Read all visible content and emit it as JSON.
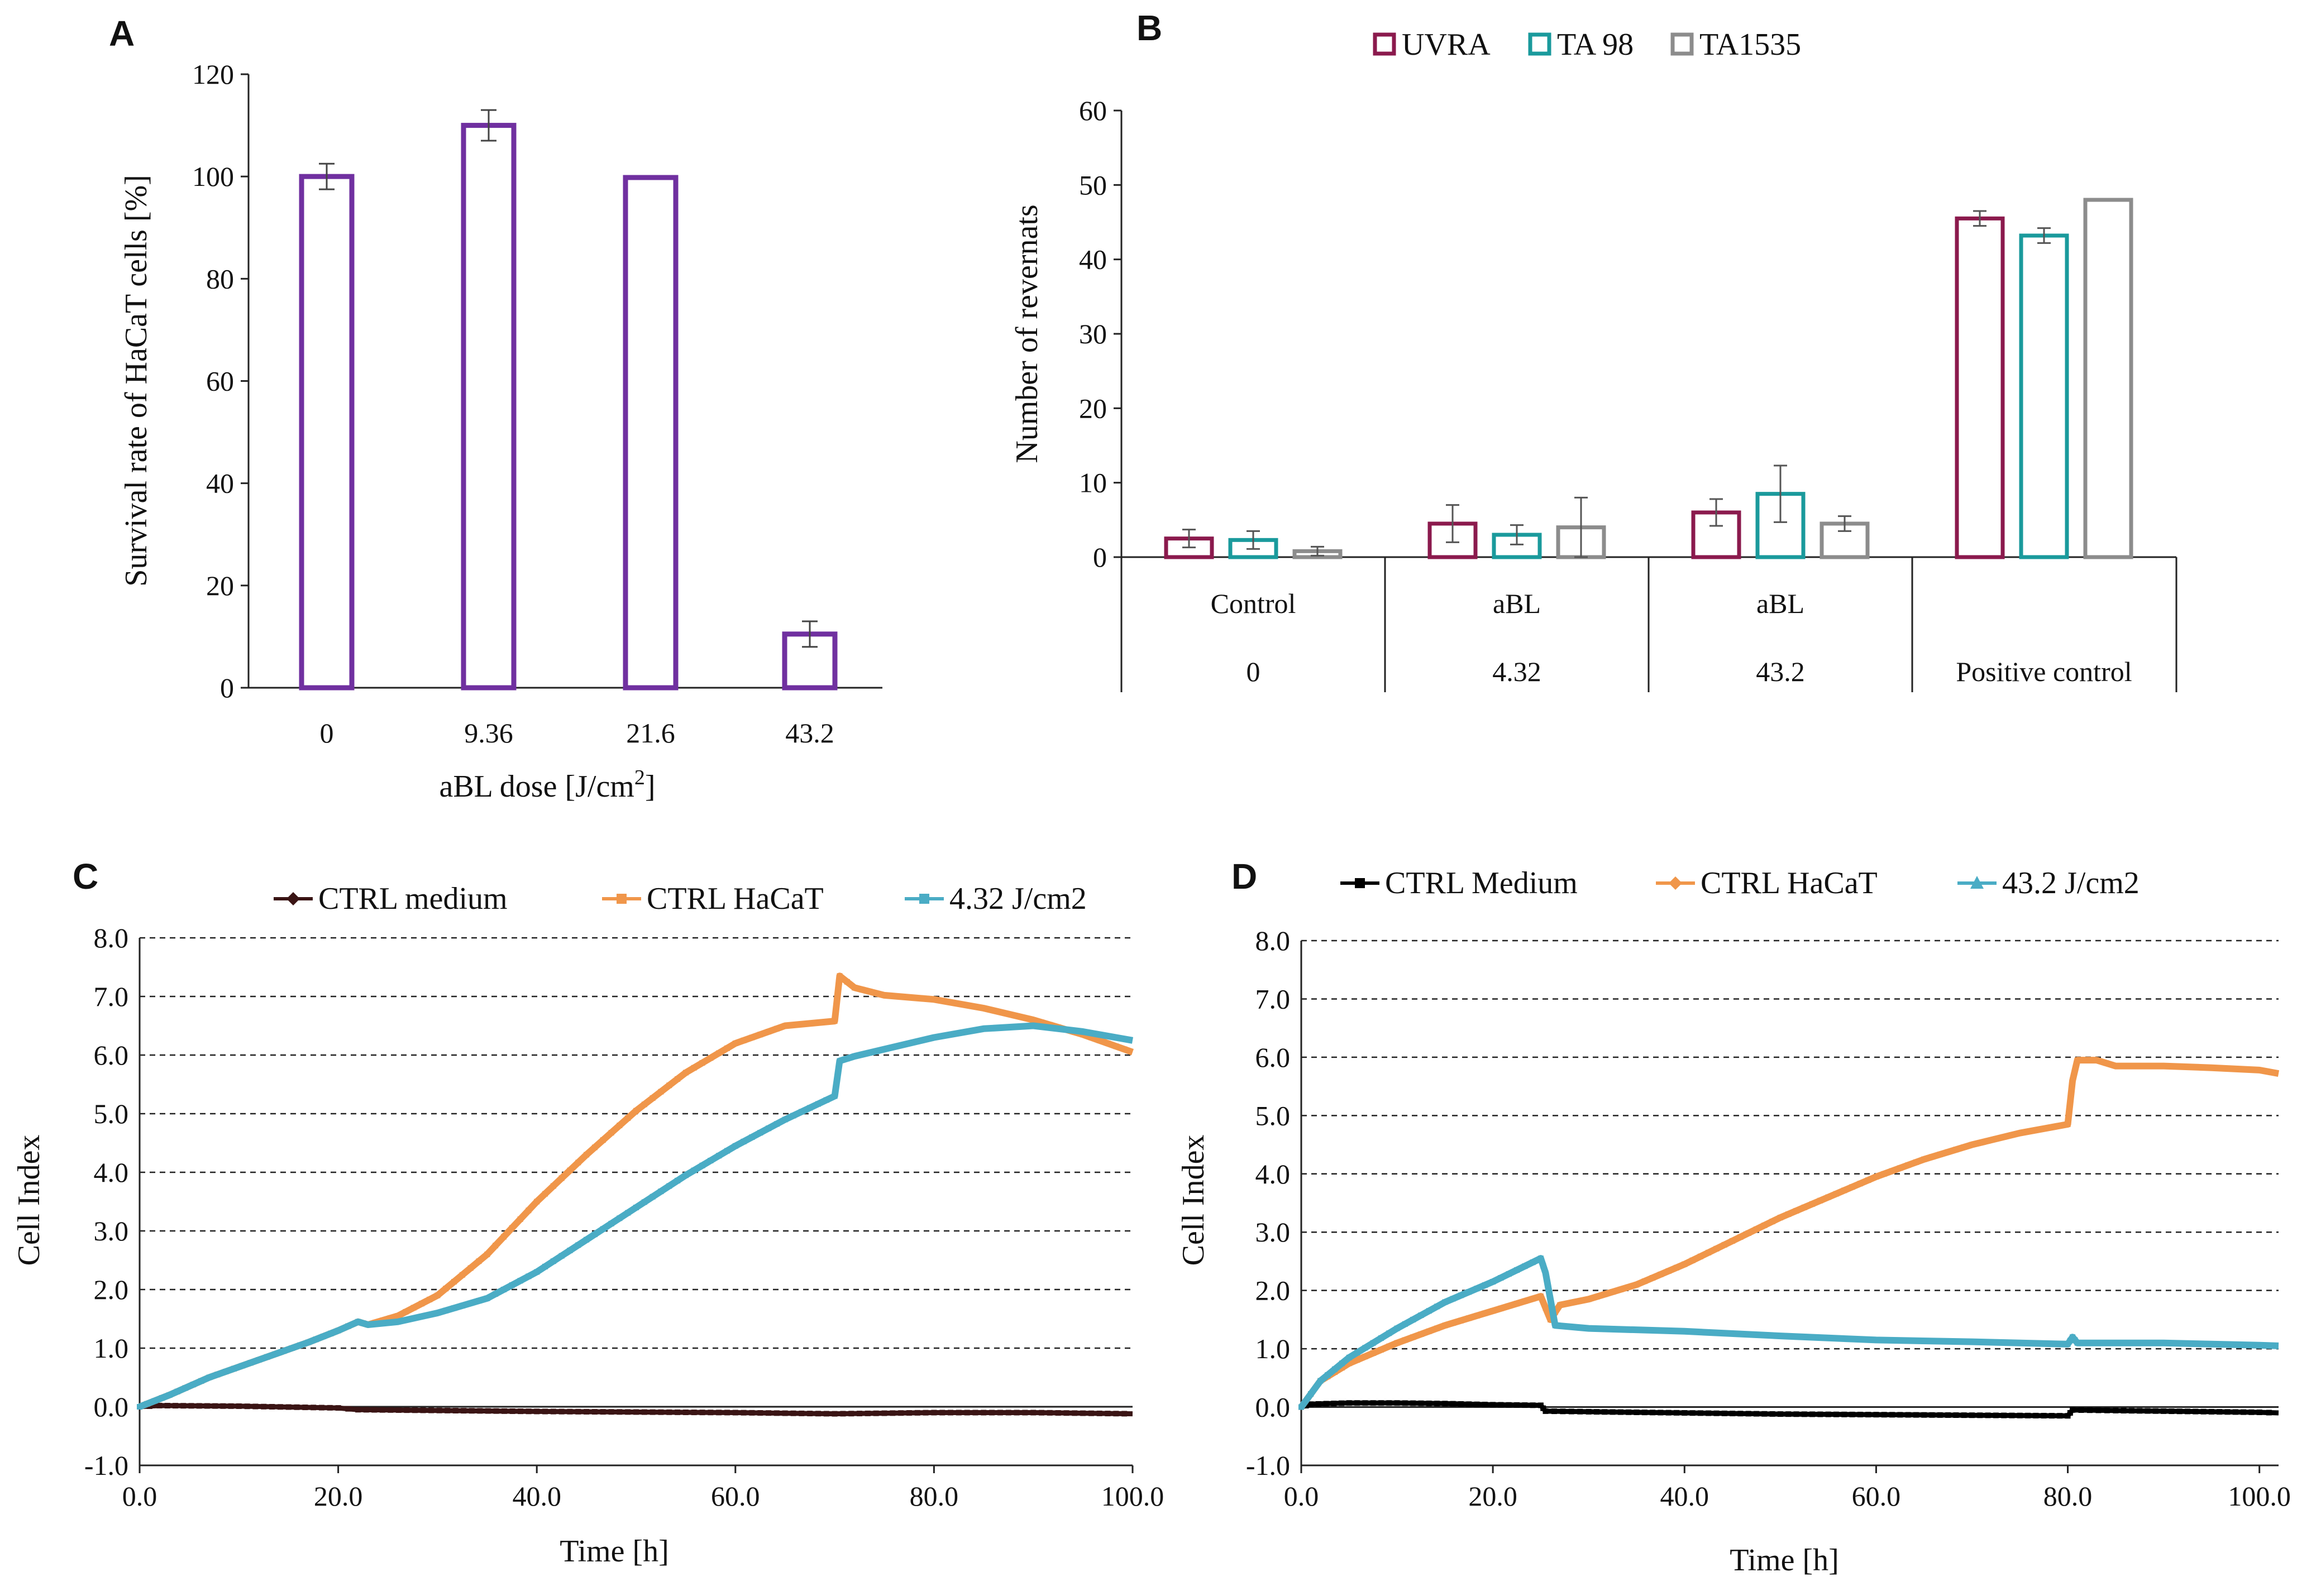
{
  "colors": {
    "purple": "#7030A0",
    "uvra": "#8B1A4D",
    "ta98": "#1A9A9C",
    "ta1535": "#8C8C8C",
    "ctrl_medium_c": "#3A1414",
    "ctrl_medium_d": "#000000",
    "ctrl_hacat": "#F0964A",
    "treated": "#4AACC5"
  },
  "chart_data": [
    {
      "panel": "A",
      "type": "bar",
      "title": "",
      "xlabel": "aBL dose [J/cm",
      "xlabel_sup": "2",
      "xlabel_end": "]",
      "ylabel": "Survival rate of HaCaT cells [%]",
      "ylim": [
        0,
        120
      ],
      "yticks": [
        "0",
        "20",
        "40",
        "60",
        "80",
        "100",
        "120"
      ],
      "categories": [
        "0",
        "9.36",
        "21.6",
        "43.2"
      ],
      "values": [
        100,
        110,
        99.8,
        10.5
      ],
      "errors": [
        2.5,
        3,
        0,
        2.5
      ]
    },
    {
      "panel": "B",
      "type": "bar",
      "title": "",
      "ylabel": "Number of revernats",
      "ylim": [
        0,
        60
      ],
      "yticks": [
        "0",
        "10",
        "20",
        "30",
        "40",
        "50",
        "60"
      ],
      "groups": [
        {
          "top": "Control",
          "bottom": "0"
        },
        {
          "top": "aBL",
          "bottom": "4.32"
        },
        {
          "top": "aBL",
          "bottom": "43.2"
        },
        {
          "top": "",
          "bottom": "Positive control"
        }
      ],
      "series": [
        {
          "name": "UVRA",
          "values": [
            2.5,
            4.5,
            6,
            45.5
          ],
          "errors": [
            1.2,
            2.5,
            1.8,
            1.0
          ]
        },
        {
          "name": "TA 98",
          "values": [
            2.3,
            3,
            8.5,
            43.2
          ],
          "errors": [
            1.2,
            1.3,
            3.8,
            1.0
          ]
        },
        {
          "name": "TA1535",
          "values": [
            0.8,
            4,
            4.5,
            48
          ],
          "errors": [
            0.6,
            4,
            1.0,
            0
          ]
        }
      ]
    },
    {
      "panel": "C",
      "type": "line",
      "title": "",
      "xlabel": "Time [h]",
      "ylabel": "Cell Index",
      "xlim": [
        0,
        100
      ],
      "ylim": [
        -1,
        8
      ],
      "xticks": [
        "0.0",
        "20.0",
        "40.0",
        "60.0",
        "80.0",
        "100.0"
      ],
      "yticks": [
        "-1.0",
        "0.0",
        "1.0",
        "2.0",
        "3.0",
        "4.0",
        "5.0",
        "6.0",
        "7.0",
        "8.0"
      ],
      "series": [
        {
          "name": "CTRL medium",
          "x": [
            0,
            2,
            10,
            20,
            22,
            40,
            60,
            70,
            80,
            90,
            100
          ],
          "y": [
            0,
            0.02,
            0.01,
            -0.02,
            -0.05,
            -0.08,
            -0.1,
            -0.12,
            -0.1,
            -0.1,
            -0.12
          ]
        },
        {
          "name": "CTRL HaCaT",
          "x": [
            0,
            3,
            7,
            12,
            17,
            20,
            22,
            23,
            26,
            30,
            35,
            40,
            45,
            50,
            55,
            60,
            65,
            70,
            70.5,
            72,
            75,
            80,
            85,
            90,
            95,
            100
          ],
          "y": [
            0,
            0.2,
            0.5,
            0.8,
            1.1,
            1.3,
            1.45,
            1.4,
            1.55,
            1.9,
            2.6,
            3.5,
            4.3,
            5.05,
            5.7,
            6.2,
            6.5,
            6.58,
            7.35,
            7.15,
            7.02,
            6.95,
            6.8,
            6.6,
            6.35,
            6.05
          ]
        },
        {
          "name": "4.32 J/cm2",
          "x": [
            0,
            3,
            7,
            12,
            17,
            20,
            22,
            23,
            26,
            30,
            35,
            40,
            45,
            50,
            55,
            60,
            65,
            70,
            70.5,
            72,
            75,
            80,
            85,
            90,
            95,
            100
          ],
          "y": [
            0,
            0.2,
            0.5,
            0.8,
            1.1,
            1.3,
            1.45,
            1.4,
            1.45,
            1.6,
            1.85,
            2.3,
            2.85,
            3.4,
            3.95,
            4.45,
            4.9,
            5.3,
            5.9,
            5.98,
            6.1,
            6.3,
            6.45,
            6.5,
            6.4,
            6.25
          ]
        }
      ]
    },
    {
      "panel": "D",
      "type": "line",
      "title": "",
      "xlabel": "Time [h]",
      "ylabel": "Cell Index",
      "xlim": [
        0,
        102
      ],
      "ylim": [
        -1,
        8
      ],
      "xticks": [
        "0.0",
        "20.0",
        "40.0",
        "60.0",
        "80.0",
        "100.0"
      ],
      "yticks": [
        "-1.0",
        "0.0",
        "1.0",
        "2.0",
        "3.0",
        "4.0",
        "5.0",
        "6.0",
        "7.0",
        "8.0"
      ],
      "series": [
        {
          "name": "CTRL Medium",
          "x": [
            0,
            1,
            5,
            10,
            15,
            20,
            25,
            25.5,
            30,
            40,
            50,
            60,
            70,
            80,
            80.5,
            85,
            90,
            95,
            100,
            102
          ],
          "y": [
            0,
            0.05,
            0.07,
            0.07,
            0.06,
            0.04,
            0.03,
            -0.07,
            -0.08,
            -0.1,
            -0.12,
            -0.13,
            -0.14,
            -0.15,
            -0.05,
            -0.06,
            -0.07,
            -0.08,
            -0.09,
            -0.1
          ]
        },
        {
          "name": "CTRL HaCaT",
          "x": [
            0,
            2,
            5,
            10,
            15,
            20,
            25,
            26,
            27,
            30,
            35,
            40,
            45,
            50,
            55,
            60,
            65,
            70,
            75,
            80,
            80.5,
            81,
            83,
            85,
            90,
            95,
            100,
            102
          ],
          "y": [
            0,
            0.45,
            0.75,
            1.1,
            1.4,
            1.65,
            1.9,
            1.5,
            1.75,
            1.85,
            2.1,
            2.45,
            2.85,
            3.25,
            3.6,
            3.95,
            4.25,
            4.5,
            4.7,
            4.85,
            5.6,
            5.95,
            5.95,
            5.85,
            5.85,
            5.82,
            5.78,
            5.72
          ]
        },
        {
          "name": "43.2 J/cm2",
          "x": [
            0,
            2,
            5,
            10,
            15,
            20,
            25,
            25.5,
            26.5,
            30,
            40,
            50,
            60,
            70,
            80,
            80.5,
            81,
            85,
            90,
            95,
            100,
            102
          ],
          "y": [
            0,
            0.45,
            0.85,
            1.35,
            1.8,
            2.15,
            2.55,
            2.3,
            1.4,
            1.35,
            1.3,
            1.22,
            1.15,
            1.12,
            1.08,
            1.2,
            1.1,
            1.1,
            1.1,
            1.08,
            1.06,
            1.05
          ]
        }
      ]
    }
  ]
}
